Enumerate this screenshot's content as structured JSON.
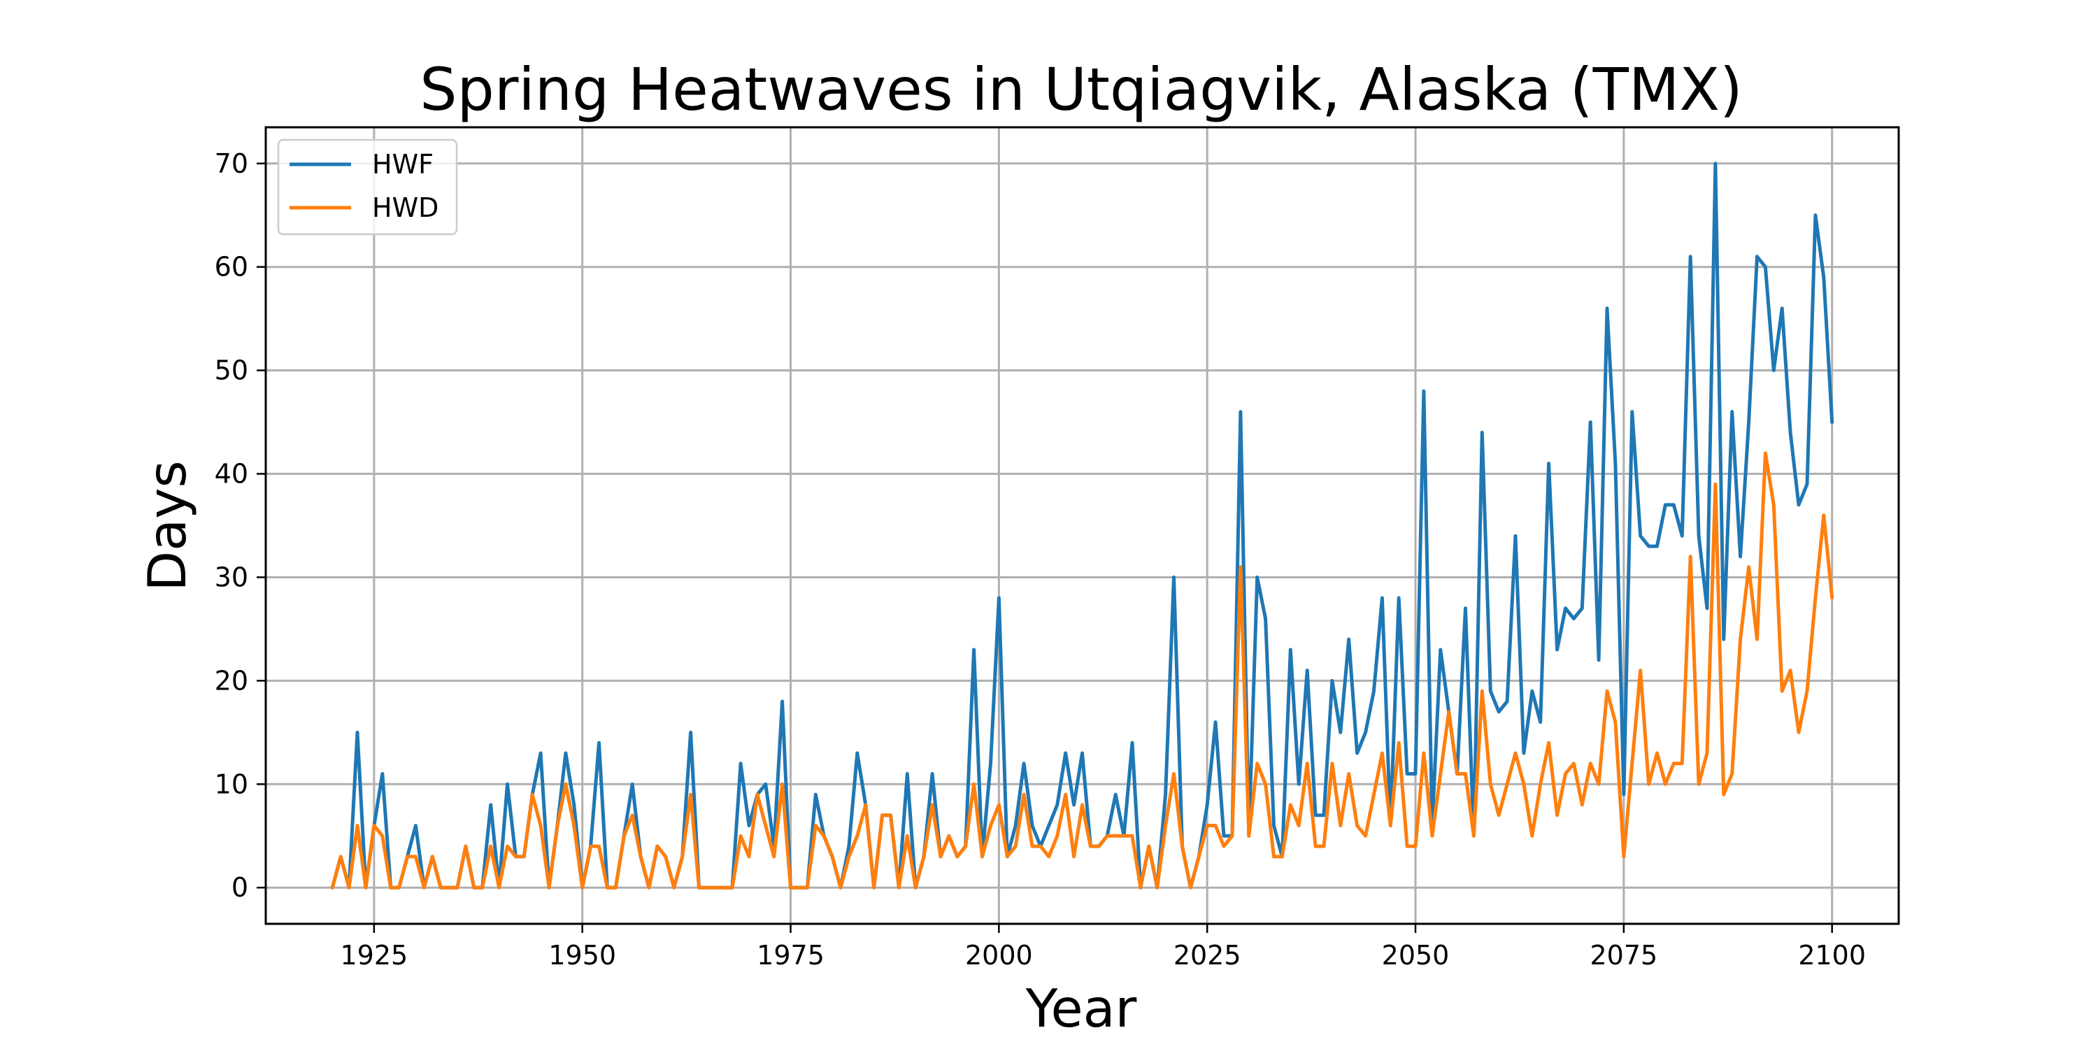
{
  "chart_data": {
    "type": "line",
    "title": "Spring Heatwaves in Utqiagvik, Alaska (TMX)",
    "xlabel": "Year",
    "ylabel": "Days",
    "xlim": [
      1912,
      2108
    ],
    "ylim": [
      -3.5,
      73.5
    ],
    "xticks": [
      1925,
      1950,
      1975,
      2000,
      2025,
      2050,
      2075,
      2100
    ],
    "yticks": [
      0,
      10,
      20,
      30,
      40,
      50,
      60,
      70
    ],
    "grid": true,
    "legend_position": "upper-left",
    "x": [
      1920,
      1921,
      1922,
      1923,
      1924,
      1925,
      1926,
      1927,
      1928,
      1929,
      1930,
      1931,
      1932,
      1933,
      1934,
      1935,
      1936,
      1937,
      1938,
      1939,
      1940,
      1941,
      1942,
      1943,
      1944,
      1945,
      1946,
      1947,
      1948,
      1949,
      1950,
      1951,
      1952,
      1953,
      1954,
      1955,
      1956,
      1957,
      1958,
      1959,
      1960,
      1961,
      1962,
      1963,
      1964,
      1965,
      1966,
      1967,
      1968,
      1969,
      1970,
      1971,
      1972,
      1973,
      1974,
      1975,
      1976,
      1977,
      1978,
      1979,
      1980,
      1981,
      1982,
      1983,
      1984,
      1985,
      1986,
      1987,
      1988,
      1989,
      1990,
      1991,
      1992,
      1993,
      1994,
      1995,
      1996,
      1997,
      1998,
      1999,
      2000,
      2001,
      2002,
      2003,
      2004,
      2005,
      2006,
      2007,
      2008,
      2009,
      2010,
      2011,
      2012,
      2013,
      2014,
      2015,
      2016,
      2017,
      2018,
      2019,
      2020,
      2021,
      2022,
      2023,
      2024,
      2025,
      2026,
      2027,
      2028,
      2029,
      2030,
      2031,
      2032,
      2033,
      2034,
      2035,
      2036,
      2037,
      2038,
      2039,
      2040,
      2041,
      2042,
      2043,
      2044,
      2045,
      2046,
      2047,
      2048,
      2049,
      2050,
      2051,
      2052,
      2053,
      2054,
      2055,
      2056,
      2057,
      2058,
      2059,
      2060,
      2061,
      2062,
      2063,
      2064,
      2065,
      2066,
      2067,
      2068,
      2069,
      2070,
      2071,
      2072,
      2073,
      2074,
      2075,
      2076,
      2077,
      2078,
      2079,
      2080,
      2081,
      2082,
      2083,
      2084,
      2085,
      2086,
      2087,
      2088,
      2089,
      2090,
      2091,
      2092,
      2093,
      2094,
      2095,
      2096,
      2097,
      2098,
      2099,
      2100
    ],
    "series": [
      {
        "name": "HWF",
        "color": "#1f77b4",
        "values": [
          0,
          3,
          0,
          15,
          0,
          6,
          11,
          0,
          0,
          3,
          6,
          0,
          3,
          0,
          0,
          0,
          4,
          0,
          0,
          8,
          0,
          10,
          3,
          3,
          9,
          13,
          0,
          6,
          13,
          8,
          0,
          4,
          14,
          0,
          0,
          5,
          10,
          3,
          0,
          4,
          3,
          0,
          3,
          15,
          0,
          0,
          0,
          0,
          0,
          12,
          6,
          9,
          10,
          4,
          18,
          0,
          0,
          0,
          9,
          5,
          3,
          0,
          4,
          13,
          8,
          0,
          7,
          7,
          0,
          11,
          0,
          3,
          11,
          3,
          5,
          3,
          4,
          23,
          3,
          12,
          28,
          3,
          6,
          12,
          6,
          4,
          6,
          8,
          13,
          8,
          13,
          4,
          4,
          5,
          9,
          5,
          14,
          0,
          4,
          0,
          9,
          30,
          4,
          0,
          3,
          8,
          16,
          5,
          5,
          46,
          5,
          30,
          26,
          6,
          3,
          23,
          10,
          21,
          7,
          7,
          20,
          15,
          24,
          13,
          15,
          19,
          28,
          6,
          28,
          11,
          11,
          48,
          6,
          23,
          17,
          11,
          27,
          5,
          44,
          19,
          17,
          18,
          34,
          13,
          19,
          16,
          41,
          23,
          27,
          26,
          27,
          45,
          22,
          56,
          41,
          9,
          46,
          34,
          33,
          33,
          37,
          37,
          34,
          61,
          34,
          27,
          70,
          24,
          46,
          32,
          45,
          61,
          60,
          50,
          56,
          44,
          37,
          39,
          65,
          59,
          45
        ]
      },
      {
        "name": "HWD",
        "color": "#ff7f0e",
        "values": [
          0,
          3,
          0,
          6,
          0,
          6,
          5,
          0,
          0,
          3,
          3,
          0,
          3,
          0,
          0,
          0,
          4,
          0,
          0,
          4,
          0,
          4,
          3,
          3,
          9,
          6,
          0,
          6,
          10,
          6,
          0,
          4,
          4,
          0,
          0,
          5,
          7,
          3,
          0,
          4,
          3,
          0,
          3,
          9,
          0,
          0,
          0,
          0,
          0,
          5,
          3,
          9,
          6,
          3,
          10,
          0,
          0,
          0,
          6,
          5,
          3,
          0,
          3,
          5,
          8,
          0,
          7,
          7,
          0,
          5,
          0,
          3,
          8,
          3,
          5,
          3,
          4,
          10,
          3,
          6,
          8,
          3,
          4,
          9,
          4,
          4,
          3,
          5,
          9,
          3,
          8,
          4,
          4,
          5,
          5,
          5,
          5,
          0,
          4,
          0,
          6,
          11,
          4,
          0,
          3,
          6,
          6,
          4,
          5,
          31,
          5,
          12,
          10,
          3,
          3,
          8,
          6,
          12,
          4,
          4,
          12,
          6,
          11,
          6,
          5,
          9,
          13,
          6,
          14,
          4,
          4,
          13,
          5,
          11,
          17,
          11,
          11,
          5,
          19,
          10,
          7,
          10,
          13,
          10,
          5,
          10,
          14,
          7,
          11,
          12,
          8,
          12,
          10,
          19,
          16,
          3,
          12,
          21,
          10,
          13,
          10,
          12,
          12,
          32,
          10,
          13,
          39,
          9,
          11,
          24,
          31,
          24,
          42,
          37,
          19,
          21,
          15,
          19,
          28,
          36,
          28
        ]
      }
    ]
  }
}
